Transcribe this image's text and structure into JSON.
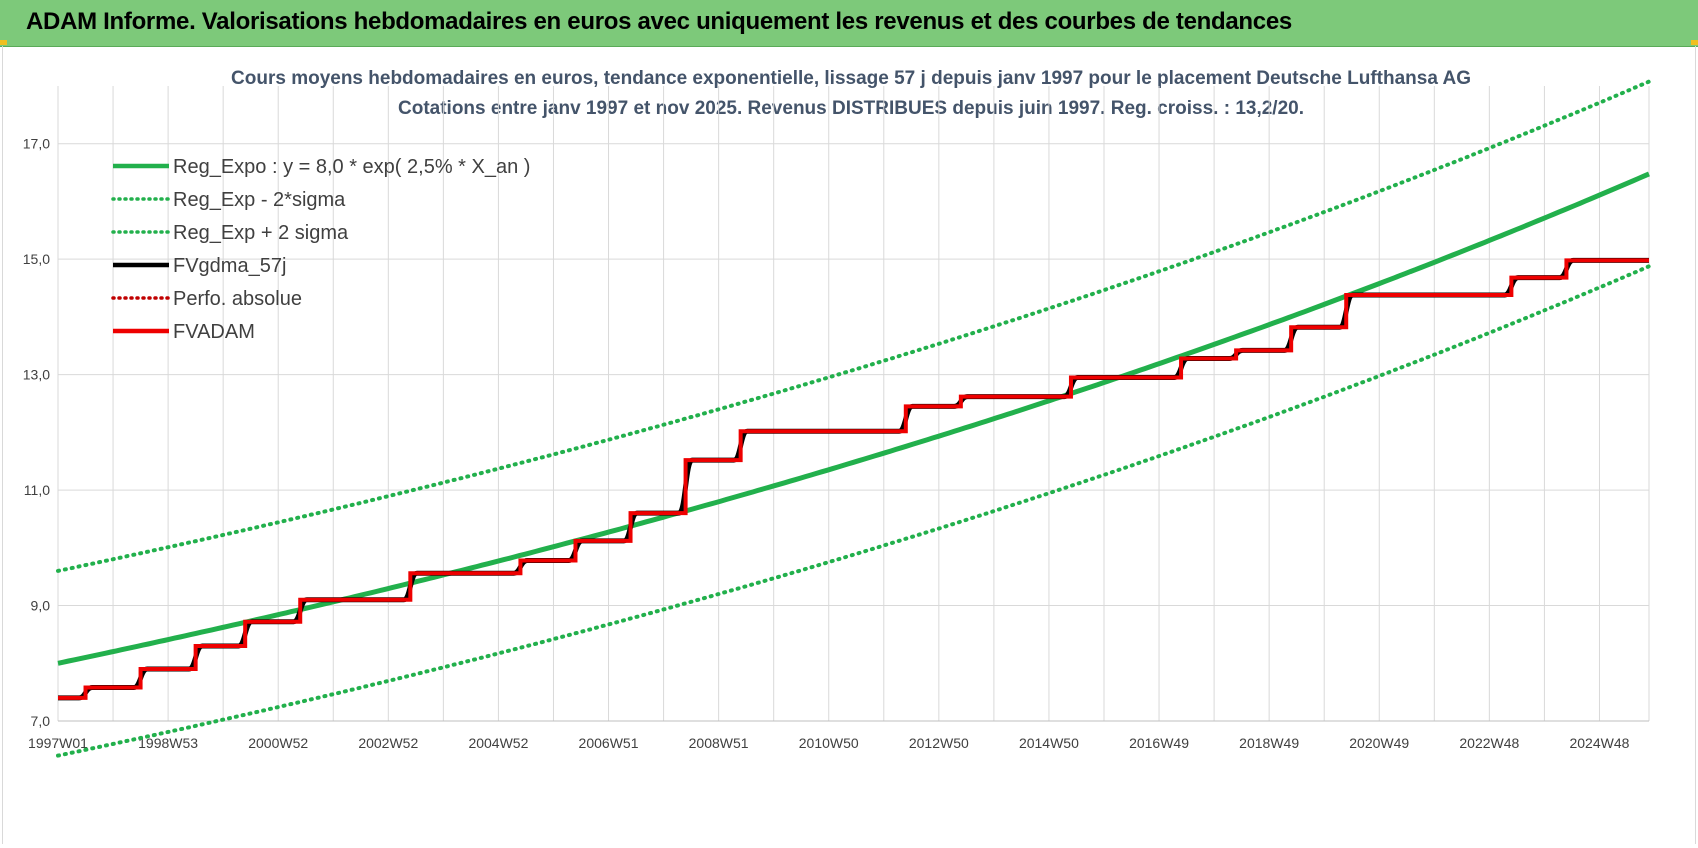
{
  "banner": {
    "title": "ADAM Informe. Valorisations hebdomadaires en euros avec uniquement les revenus et des courbes de tendances"
  },
  "colors": {
    "banner_bg": "#7dc97a",
    "reg_line": "#22b04c",
    "fvadam": "#ee0000",
    "fvgdma": "#000000",
    "perfo": "#c00000"
  },
  "chart_data": {
    "type": "line",
    "title": [
      "Cours moyens hebdomadaires en euros, tendance exponentielle, lissage 57 j depuis janv 1997 pour le placement Deutsche Lufthansa AG",
      "Cotations entre janv 1997 et nov 2025. Revenus DISTRIBUES depuis juin 1997. Reg. croiss. : 13,2/20."
    ],
    "xlabel": "",
    "ylabel": "",
    "x_tick_labels": [
      "1997W01",
      "1998W53",
      "2000W52",
      "2002W52",
      "2004W52",
      "2006W51",
      "2008W51",
      "2010W50",
      "2012W50",
      "2014W50",
      "2016W49",
      "2018W49",
      "2020W49",
      "2022W48",
      "2024W48"
    ],
    "x_range": [
      1997.0,
      2025.9
    ],
    "y_ticks": [
      "7,0",
      "9,0",
      "11,0",
      "13,0",
      "15,0",
      "17,0"
    ],
    "ylim": [
      7.0,
      18.0
    ],
    "grid": true,
    "legend_position": "top-left",
    "regression": {
      "a": 8.0,
      "rate": 0.025,
      "sigma_band": 0.8
    },
    "series": [
      {
        "name": "Reg_Expo : y = 8,0 * exp( 2,5% *  X_an )",
        "style": "solid",
        "color": "#22b04c"
      },
      {
        "name": "Reg_Exp - 2*sigma",
        "style": "dotted",
        "color": "#22b04c"
      },
      {
        "name": "Reg_Exp + 2 sigma",
        "style": "dotted",
        "color": "#22b04c"
      },
      {
        "name": "FVgdma_57j",
        "style": "solid",
        "color": "#000000"
      },
      {
        "name": "Perfo. absolue",
        "style": "dotted",
        "color": "#c00000"
      },
      {
        "name": "FVADAM",
        "style": "solid",
        "color": "#ee0000",
        "steps": [
          [
            1997.0,
            7.4
          ],
          [
            1997.5,
            7.58
          ],
          [
            1998.5,
            7.9
          ],
          [
            1999.5,
            8.3
          ],
          [
            2000.4,
            8.72
          ],
          [
            2001.4,
            9.1
          ],
          [
            2003.4,
            9.56
          ],
          [
            2005.4,
            9.78
          ],
          [
            2006.4,
            10.12
          ],
          [
            2007.4,
            10.6
          ],
          [
            2008.4,
            11.52
          ],
          [
            2009.4,
            12.02
          ],
          [
            2012.4,
            12.45
          ],
          [
            2013.4,
            12.62
          ],
          [
            2015.4,
            12.95
          ],
          [
            2017.4,
            13.28
          ],
          [
            2018.4,
            13.42
          ],
          [
            2019.4,
            13.82
          ],
          [
            2020.4,
            14.38
          ],
          [
            2023.4,
            14.68
          ],
          [
            2024.4,
            14.98
          ]
        ],
        "end_x": 2025.9
      }
    ]
  }
}
